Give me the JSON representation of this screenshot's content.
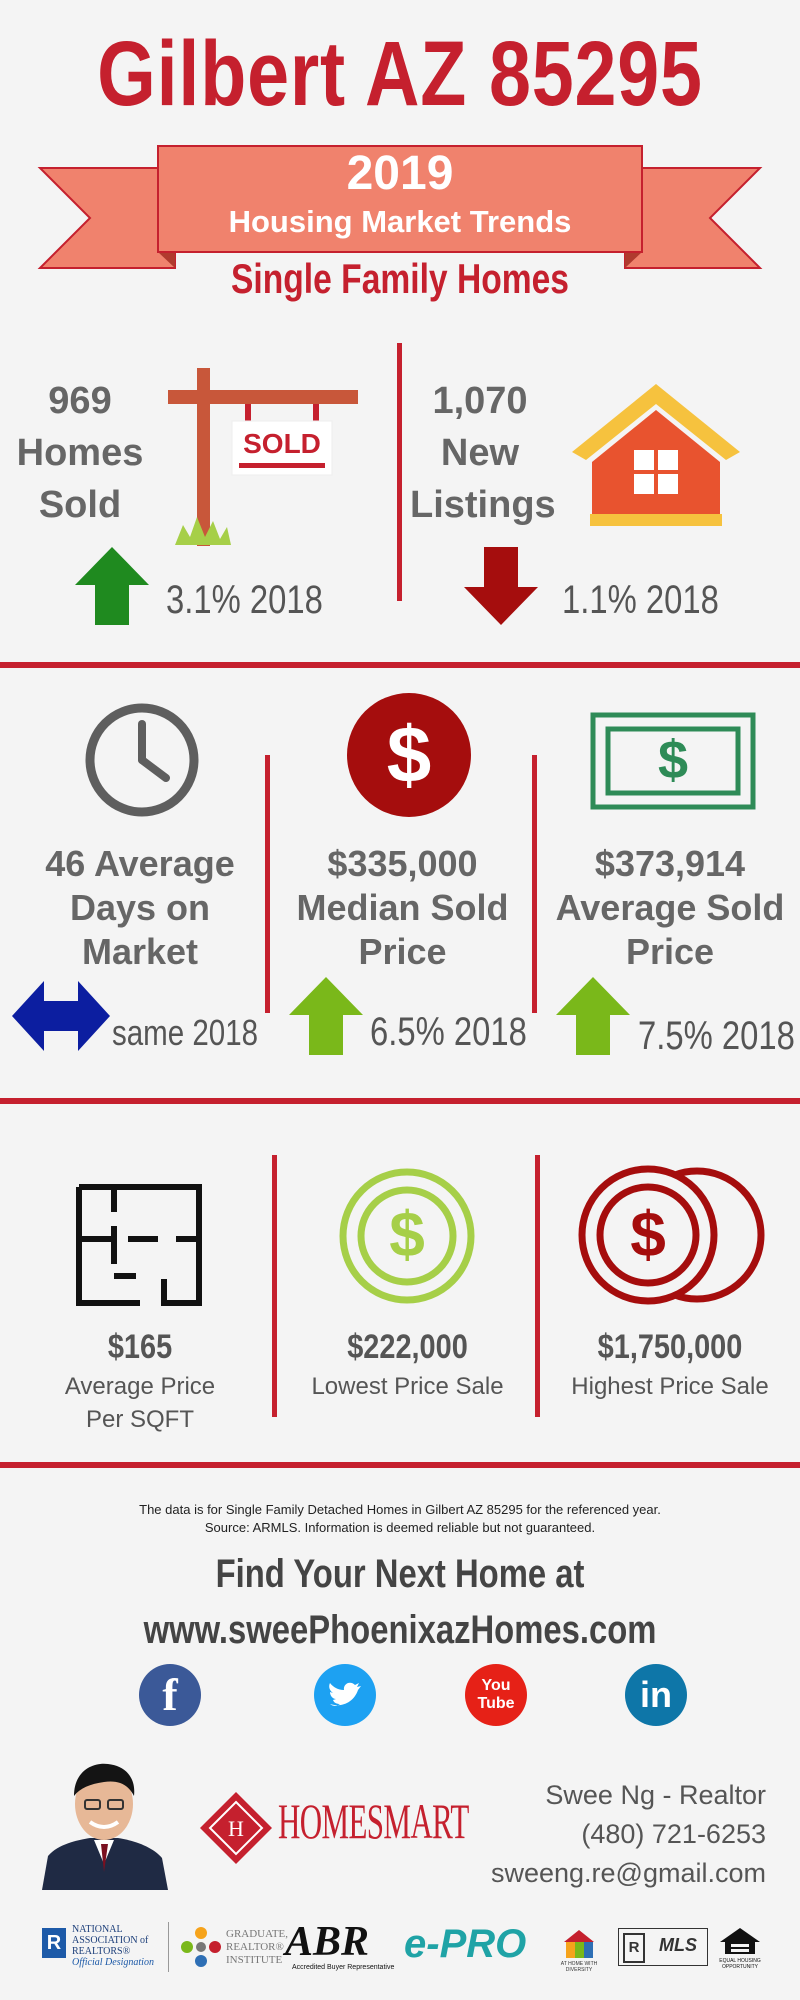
{
  "header": {
    "title": "Gilbert AZ 85295",
    "year": "2019",
    "banner_subtitle": "Housing Market Trends",
    "category": "Single Family Homes"
  },
  "row1": {
    "homes_sold": {
      "number": "969",
      "line1": "Homes",
      "line2": "Sold",
      "change": "3.1% 2018",
      "direction": "up"
    },
    "new_listings": {
      "number": "1,070",
      "line1": "New",
      "line2": "Listings",
      "change": "1.1% 2018",
      "direction": "down"
    },
    "sold_sign_text": "SOLD"
  },
  "row2": {
    "days": {
      "line1": "46 Average",
      "line2": "Days on",
      "line3": "Market",
      "change": "same 2018"
    },
    "median": {
      "line1": "$335,000",
      "line2": "Median Sold",
      "line3": "Price",
      "change": "6.5% 2018"
    },
    "average": {
      "line1": "$373,914",
      "line2": "Average Sold",
      "line3": "Price",
      "change": "7.5% 2018"
    },
    "dollar_symbol": "$"
  },
  "row3": {
    "sqft": {
      "price": "$165",
      "line1": "Average Price",
      "line2": "Per SQFT"
    },
    "lowest": {
      "price": "$222,000",
      "label": "Lowest Price Sale"
    },
    "highest": {
      "price": "$1,750,000",
      "label": "Highest Price Sale"
    }
  },
  "footer": {
    "note_line1": "The data is for Single Family Detached Homes in Gilbert AZ 85295 for the referenced year.",
    "note_line2": "Source: ARMLS. Information is deemed reliable but not guaranteed.",
    "cta_line1": "Find Your Next Home at",
    "cta_line2": "www.sweePhoenixazHomes.com",
    "social": {
      "facebook": "f",
      "youtube_1": "You",
      "youtube_2": "Tube",
      "linkedin": "in"
    },
    "agent_name": "Swee Ng - Realtor",
    "agent_phone": "(480) 721-6253",
    "agent_email": "sweeng.re@gmail.com",
    "brand": "HOMESMART"
  },
  "logos": {
    "nar1": "NATIONAL",
    "nar2": "ASSOCIATION of",
    "nar3": "REALTORS®",
    "nar4": "Official Designation",
    "gri1": "GRADUATE,",
    "gri2": "REALTOR®",
    "gri3": "INSTITUTE",
    "abr": "ABR",
    "abr_sub": "Accredited Buyer Representative",
    "epro": "e-PRO",
    "diversity": "AT HOME WITH DIVERSITY",
    "mls": "MLS",
    "eho": "EQUAL HOUSING OPPORTUNITY"
  },
  "colors": {
    "accent_red": "#c5202e",
    "banner_salmon": "#f0826d",
    "up_green": "#1f8a1f",
    "down_red": "#a50d0d"
  }
}
